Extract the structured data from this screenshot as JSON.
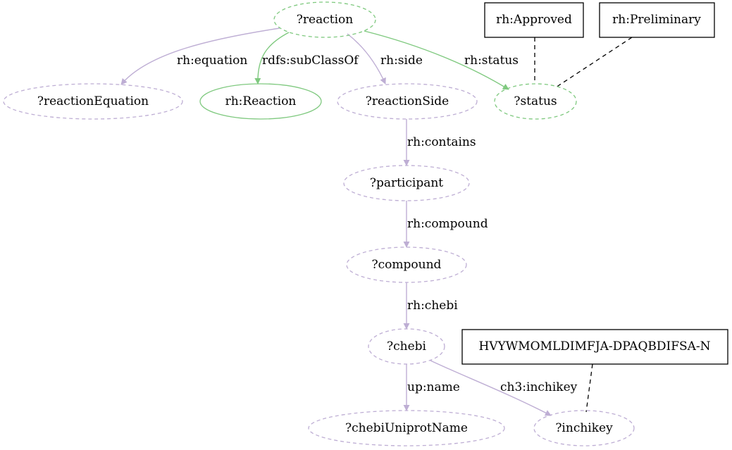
{
  "colors": {
    "green": "#7fc97f",
    "purple": "#beaed4",
    "black": "#000000",
    "background": "#ffffff"
  },
  "nodes": {
    "reaction": "?reaction",
    "approved": "rh:Approved",
    "preliminary": "rh:Preliminary",
    "reaction_equation": "?reactionEquation",
    "rh_reaction": "rh:Reaction",
    "reaction_side": "?reactionSide",
    "status": "?status",
    "participant": "?participant",
    "compound": "?compound",
    "chebi": "?chebi",
    "inchikey_value": "HVYWMOMLDIMFJA-DPAQBDIFSA-N",
    "chebi_uniprot_name": "?chebiUniprotName",
    "inchikey": "?inchikey"
  },
  "edges": {
    "equation": "rh:equation",
    "subclass_of": "rdfs:subClassOf",
    "side": "rh:side",
    "status": "rh:status",
    "contains": "rh:contains",
    "compound": "rh:compound",
    "chebi": "rh:chebi",
    "name": "up:name",
    "inchikey": "ch3:inchikey"
  }
}
